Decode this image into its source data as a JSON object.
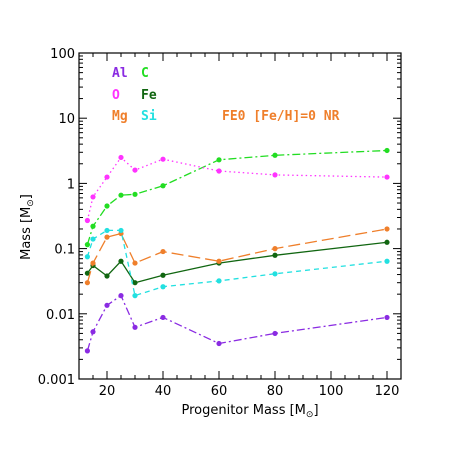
{
  "chart_data": {
    "type": "line",
    "xlabel": "Progenitor Mass [M",
    "xlabel_sub": "⊙",
    "xlabel_end": "]",
    "ylabel": "Mass [M",
    "ylabel_sub": "⊙",
    "ylabel_end": "]",
    "annotation": "FE0 [Fe/H]=0 NR",
    "annotation_color": "#ef7f2b",
    "xlim": [
      10,
      125
    ],
    "ylim": [
      0.001,
      100
    ],
    "yscale": "log",
    "xticks": [
      "20",
      "40",
      "60",
      "80",
      "100",
      "120"
    ],
    "yticks": [
      "0.001",
      "0.01",
      "0.1",
      "1",
      "10",
      "100"
    ],
    "x": [
      13,
      15,
      20,
      25,
      30,
      40,
      60,
      80,
      120
    ],
    "series": [
      {
        "name": "Al",
        "color": "#8a2be2",
        "dash": "8 3 2 3",
        "values": [
          0.0027,
          0.0053,
          0.0135,
          0.019,
          0.0062,
          0.0088,
          0.0035,
          0.005,
          0.0088
        ]
      },
      {
        "name": "C",
        "color": "#22dd22",
        "dash": "8 3 2 3",
        "values": [
          0.115,
          0.22,
          0.45,
          0.66,
          0.68,
          0.92,
          2.3,
          2.7,
          3.2
        ]
      },
      {
        "name": "O",
        "color": "#ff33ff",
        "dash": "1.5 3",
        "values": [
          0.27,
          0.62,
          1.25,
          2.5,
          1.6,
          2.35,
          1.55,
          1.35,
          1.25
        ]
      },
      {
        "name": "Fe",
        "color": "#116611",
        "dash": "",
        "values": [
          0.042,
          0.055,
          0.038,
          0.064,
          0.03,
          0.039,
          0.06,
          0.079,
          0.125
        ]
      },
      {
        "name": "Mg",
        "color": "#ef7f2b",
        "dash": "12 5",
        "values": [
          0.03,
          0.06,
          0.15,
          0.17,
          0.06,
          0.09,
          0.064,
          0.1,
          0.2
        ]
      },
      {
        "name": "Si",
        "color": "#22e0e0",
        "dash": "5 4",
        "values": [
          0.075,
          0.14,
          0.19,
          0.19,
          0.019,
          0.026,
          0.032,
          0.041,
          0.064
        ]
      }
    ]
  }
}
